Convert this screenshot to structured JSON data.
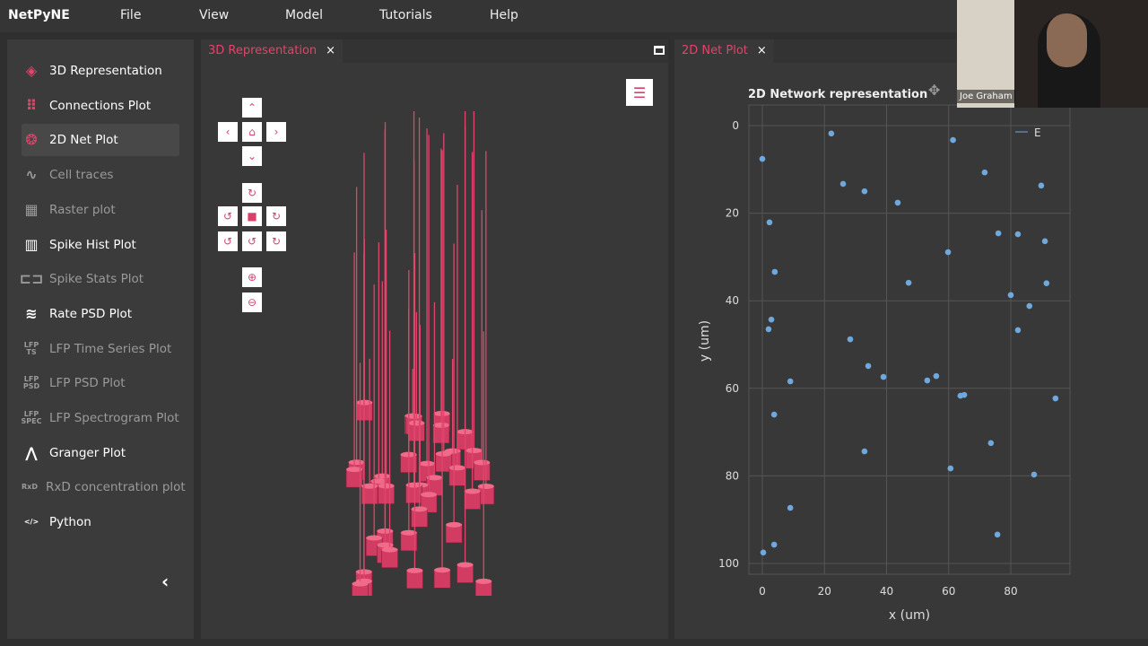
{
  "app": {
    "brand": "NetPyNE",
    "menu": [
      "File",
      "View",
      "Model",
      "Tutorials",
      "Help"
    ]
  },
  "sidebar": {
    "items": [
      {
        "label": "3D Representation",
        "icon": "cube-icon",
        "enabled": true,
        "active": false
      },
      {
        "label": "Connections Plot",
        "icon": "matrix-dots-icon",
        "enabled": true,
        "active": false
      },
      {
        "label": "2D Net Plot",
        "icon": "network-icon",
        "enabled": true,
        "active": true
      },
      {
        "label": "Cell traces",
        "icon": "trace-icon",
        "enabled": false
      },
      {
        "label": "Raster plot",
        "icon": "raster-icon",
        "enabled": false
      },
      {
        "label": "Spike Hist Plot",
        "icon": "histogram-icon",
        "enabled": true
      },
      {
        "label": "Spike Stats Plot",
        "icon": "boxplot-icon",
        "enabled": false
      },
      {
        "label": "Rate PSD Plot",
        "icon": "waveform-icon",
        "enabled": true
      },
      {
        "label": "LFP Time Series Plot",
        "icon": "lfp-ts-icon",
        "icon_text": "LFP TS",
        "enabled": false
      },
      {
        "label": "LFP PSD Plot",
        "icon": "lfp-psd-icon",
        "icon_text": "LFP PSD",
        "enabled": false
      },
      {
        "label": "LFP Spectrogram Plot",
        "icon": "lfp-spec-icon",
        "icon_text": "LFP SPEC",
        "enabled": false
      },
      {
        "label": "Granger Plot",
        "icon": "granger-icon",
        "enabled": true
      },
      {
        "label": "RxD concentration plot",
        "icon": "rxd-icon",
        "icon_text": "RxD",
        "enabled": false
      },
      {
        "label": "Python",
        "icon": "code-icon",
        "icon_text": "</>",
        "enabled": true
      }
    ]
  },
  "panel3d": {
    "tab": "3D Representation",
    "close": "×"
  },
  "panel2d": {
    "tab": "2D Net Plot",
    "close": "×"
  },
  "webcam": {
    "name": "Joe Graham"
  },
  "colors": {
    "accent": "#e0456b",
    "point": "#6fa8dc"
  },
  "chart_data": {
    "type": "scatter",
    "title": "2D Network representation",
    "xlabel": "x (um)",
    "ylabel": "y (um)",
    "xlim": [
      -5,
      100
    ],
    "ylim": [
      104,
      -3
    ],
    "y_reversed": true,
    "xticks": [
      0,
      20,
      40,
      60,
      80
    ],
    "yticks": [
      0,
      20,
      40,
      60,
      80,
      100
    ],
    "grid": true,
    "legend_position": "top-right",
    "series": [
      {
        "name": "E",
        "points": [
          [
            0,
            7.6
          ],
          [
            22.2,
            1.8
          ],
          [
            2.3,
            22.1
          ],
          [
            4,
            33.4
          ],
          [
            26,
            13.3
          ],
          [
            32.9,
            15
          ],
          [
            43.6,
            17.6
          ],
          [
            61.4,
            3.3
          ],
          [
            71.6,
            10.7
          ],
          [
            89.8,
            13.7
          ],
          [
            76,
            24.6
          ],
          [
            82.3,
            24.8
          ],
          [
            91,
            26.4
          ],
          [
            59.8,
            28.9
          ],
          [
            47.1,
            35.9
          ],
          [
            91.5,
            36
          ],
          [
            80,
            38.7
          ],
          [
            86,
            41.2
          ],
          [
            2.9,
            44.3
          ],
          [
            2,
            46.5
          ],
          [
            82.3,
            46.7
          ],
          [
            28.3,
            48.8
          ],
          [
            34.1,
            54.9
          ],
          [
            39,
            57.4
          ],
          [
            53.1,
            58.2
          ],
          [
            56,
            57.2
          ],
          [
            9,
            58.4
          ],
          [
            63.8,
            61.7
          ],
          [
            65,
            61.5
          ],
          [
            94.4,
            62.3
          ],
          [
            3.8,
            66
          ],
          [
            32.9,
            74.4
          ],
          [
            73.6,
            72.5
          ],
          [
            60.6,
            78.3
          ],
          [
            87.5,
            79.7
          ],
          [
            9,
            87.3
          ],
          [
            75.7,
            93.4
          ],
          [
            3.8,
            95.7
          ],
          [
            0.3,
            97.5
          ]
        ]
      }
    ]
  }
}
